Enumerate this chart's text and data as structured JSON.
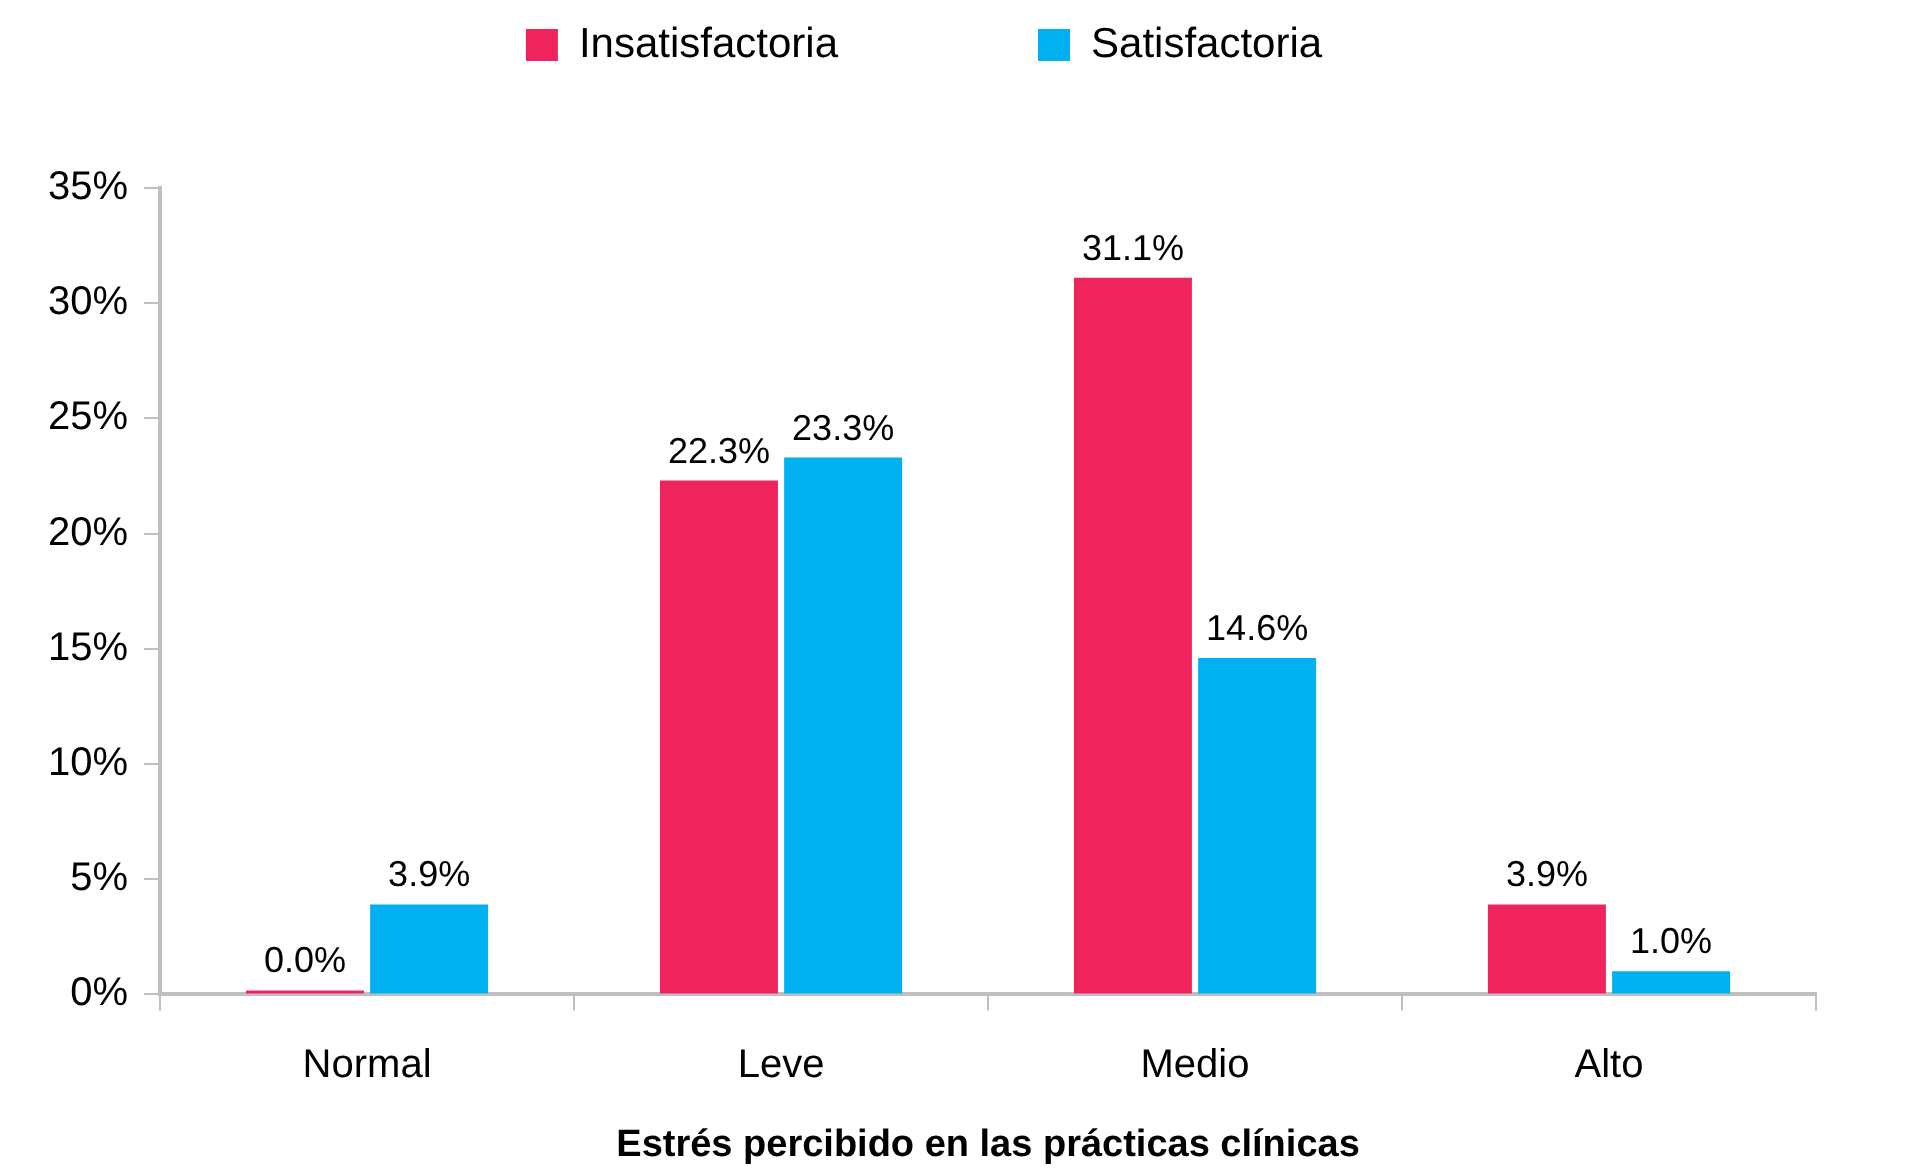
{
  "chart_data": {
    "type": "bar",
    "xlabel": "Estrés percibido en las prácticas clínicas",
    "categories": [
      "Normal",
      "Leve",
      "Medio",
      "Alto"
    ],
    "series": [
      {
        "name": "Insatisfactoria",
        "color": "#f0245c",
        "values": [
          0.0,
          22.3,
          31.1,
          3.9
        ],
        "value_labels": [
          "0.0%",
          "22.3%",
          "31.1%",
          "3.9%"
        ]
      },
      {
        "name": "Satisfactoria",
        "color": "#00b0f0",
        "values": [
          3.9,
          23.3,
          14.6,
          1.0
        ],
        "value_labels": [
          "3.9%",
          "23.3%",
          "14.6%",
          "1.0%"
        ]
      }
    ],
    "ylim": [
      0,
      35
    ],
    "yticks": [
      {
        "value": 0,
        "label": "0%"
      },
      {
        "value": 5,
        "label": "5%"
      },
      {
        "value": 10,
        "label": "10%"
      },
      {
        "value": 15,
        "label": "15%"
      },
      {
        "value": 20,
        "label": "20%"
      },
      {
        "value": 25,
        "label": "25%"
      },
      {
        "value": 30,
        "label": "30%"
      },
      {
        "value": 35,
        "label": "35%"
      }
    ],
    "grid": false,
    "legend": "top"
  }
}
